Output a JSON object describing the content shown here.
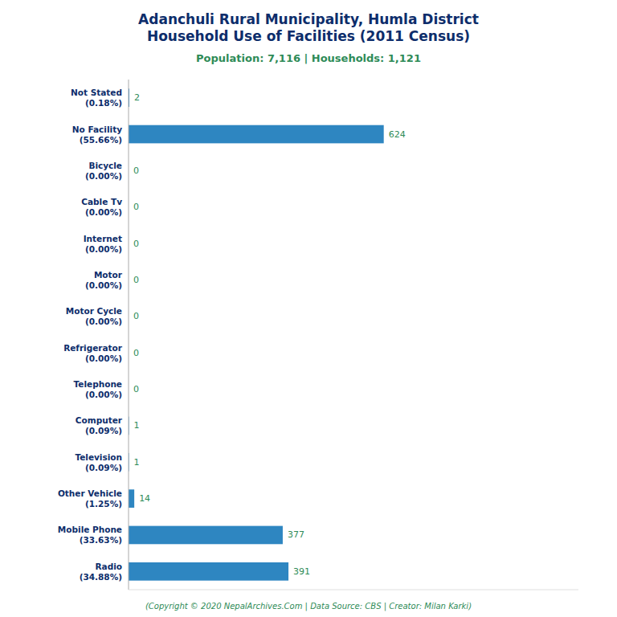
{
  "chart_data": {
    "type": "bar",
    "orientation": "horizontal",
    "title": "Adanchuli Rural Municipality, Humla District\nHousehold Use of Facilities (2011 Census)",
    "subtitle": "Population: 7,116 | Households: 1,121",
    "footer": "(Copyright © 2020 NepalArchives.Com | Data Source: CBS | Creator: Milan Karki)",
    "categories": [
      "Not Stated\n(0.18%)",
      "No Facility\n(55.66%)",
      "Bicycle\n(0.00%)",
      "Cable Tv\n(0.00%)",
      "Internet\n(0.00%)",
      "Motor\n(0.00%)",
      "Motor Cycle\n(0.00%)",
      "Refrigerator\n(0.00%)",
      "Telephone\n(0.00%)",
      "Computer\n(0.09%)",
      "Television\n(0.09%)",
      "Other Vehicle\n(1.25%)",
      "Mobile Phone\n(33.63%)",
      "Radio\n(34.88%)"
    ],
    "values": [
      2,
      624,
      0,
      0,
      0,
      0,
      0,
      0,
      0,
      1,
      1,
      14,
      377,
      391
    ],
    "color": "#2e86c1",
    "xlim": [
      0,
      1100
    ],
    "data_labels": true,
    "tick_labels": "y",
    "grid": false
  }
}
